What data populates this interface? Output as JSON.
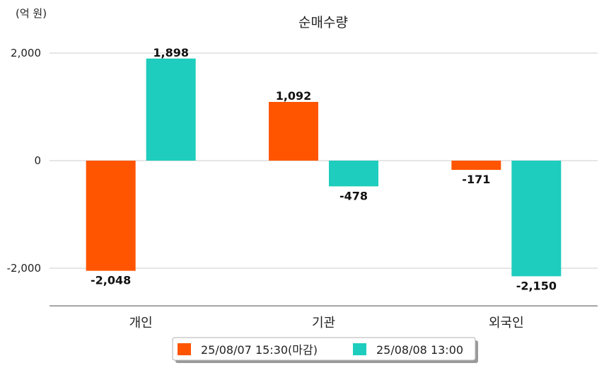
{
  "chart_data": {
    "type": "bar",
    "title": "순매수량",
    "unit_label": "(억 원)",
    "categories": [
      "개인",
      "기관",
      "외국인"
    ],
    "series": [
      {
        "name": "25/08/07 15:30(마감)",
        "color": "#ff5500",
        "values": [
          -2048,
          1092,
          -171
        ],
        "labels": [
          "-2,048",
          "1,092",
          "-171"
        ]
      },
      {
        "name": "25/08/08 13:00",
        "color": "#1ecdbd",
        "values": [
          1898,
          -478,
          -2150
        ],
        "labels": [
          "1,898",
          "-478",
          "-2,150"
        ]
      }
    ],
    "ylim": [
      -2700,
      2000
    ],
    "yticks": [
      2000,
      0,
      -2000
    ],
    "ytick_labels": [
      "2,000",
      "0",
      "-2,000"
    ],
    "grid": true,
    "legend_position": "bottom-center"
  }
}
